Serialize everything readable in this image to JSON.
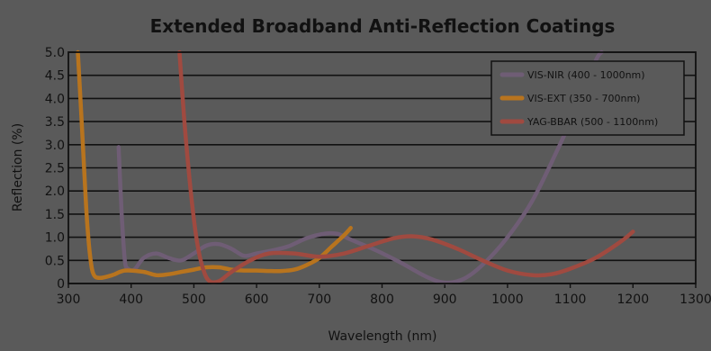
{
  "chart_data": {
    "type": "line",
    "title": "Extended Broadband Anti-Reflection Coatings",
    "xlabel": "Wavelength (nm)",
    "ylabel": "Reflection (%)",
    "xlim": [
      300,
      1300
    ],
    "ylim": [
      0,
      5.0
    ],
    "x_ticks": [
      "300",
      "400",
      "500",
      "600",
      "700",
      "800",
      "900",
      "1000",
      "1100",
      "1200",
      "1300"
    ],
    "y_ticks": [
      "0",
      "0.5",
      "1.0",
      "1.5",
      "2.0",
      "2.5",
      "3.0",
      "3.5",
      "4.0",
      "4.5",
      "5.0"
    ],
    "grid": true,
    "legend_position": "top-right",
    "series": [
      {
        "name": "VIS-NIR (400 - 1000nm)",
        "color": "#6f5d75",
        "points": [
          [
            380,
            2.95
          ],
          [
            385,
            1.5
          ],
          [
            390,
            0.5
          ],
          [
            395,
            0.32
          ],
          [
            405,
            0.3
          ],
          [
            420,
            0.55
          ],
          [
            440,
            0.65
          ],
          [
            460,
            0.55
          ],
          [
            480,
            0.5
          ],
          [
            500,
            0.65
          ],
          [
            520,
            0.82
          ],
          [
            540,
            0.85
          ],
          [
            560,
            0.75
          ],
          [
            580,
            0.6
          ],
          [
            600,
            0.65
          ],
          [
            620,
            0.7
          ],
          [
            650,
            0.8
          ],
          [
            680,
            0.98
          ],
          [
            710,
            1.08
          ],
          [
            730,
            1.07
          ],
          [
            750,
            0.95
          ],
          [
            790,
            0.72
          ],
          [
            830,
            0.45
          ],
          [
            870,
            0.15
          ],
          [
            900,
            0.02
          ],
          [
            930,
            0.1
          ],
          [
            960,
            0.4
          ],
          [
            1000,
            1.0
          ],
          [
            1040,
            1.8
          ],
          [
            1080,
            2.9
          ],
          [
            1110,
            3.8
          ],
          [
            1140,
            4.8
          ],
          [
            1150,
            5.0
          ]
        ]
      },
      {
        "name": "VIS-EXT (350 - 700nm)",
        "color": "#b8741e",
        "points": [
          [
            315,
            5.0
          ],
          [
            320,
            3.8
          ],
          [
            325,
            2.5
          ],
          [
            330,
            1.3
          ],
          [
            335,
            0.55
          ],
          [
            340,
            0.2
          ],
          [
            350,
            0.12
          ],
          [
            370,
            0.18
          ],
          [
            390,
            0.28
          ],
          [
            420,
            0.25
          ],
          [
            440,
            0.18
          ],
          [
            460,
            0.2
          ],
          [
            480,
            0.25
          ],
          [
            500,
            0.3
          ],
          [
            520,
            0.35
          ],
          [
            540,
            0.35
          ],
          [
            560,
            0.3
          ],
          [
            580,
            0.28
          ],
          [
            600,
            0.28
          ],
          [
            620,
            0.27
          ],
          [
            640,
            0.27
          ],
          [
            660,
            0.3
          ],
          [
            680,
            0.4
          ],
          [
            700,
            0.55
          ],
          [
            720,
            0.8
          ],
          [
            740,
            1.05
          ],
          [
            750,
            1.2
          ]
        ]
      },
      {
        "name": "YAG-BBAR (500 - 1100nm)",
        "color": "#a04a40",
        "points": [
          [
            477,
            5.0
          ],
          [
            485,
            3.5
          ],
          [
            495,
            2.0
          ],
          [
            505,
            0.9
          ],
          [
            515,
            0.3
          ],
          [
            525,
            0.05
          ],
          [
            540,
            0.05
          ],
          [
            560,
            0.25
          ],
          [
            590,
            0.5
          ],
          [
            620,
            0.65
          ],
          [
            660,
            0.65
          ],
          [
            700,
            0.58
          ],
          [
            740,
            0.65
          ],
          [
            780,
            0.82
          ],
          [
            820,
            0.98
          ],
          [
            850,
            1.02
          ],
          [
            880,
            0.95
          ],
          [
            920,
            0.75
          ],
          [
            960,
            0.5
          ],
          [
            1000,
            0.28
          ],
          [
            1040,
            0.18
          ],
          [
            1070,
            0.2
          ],
          [
            1100,
            0.32
          ],
          [
            1140,
            0.55
          ],
          [
            1180,
            0.9
          ],
          [
            1200,
            1.12
          ]
        ]
      }
    ]
  }
}
